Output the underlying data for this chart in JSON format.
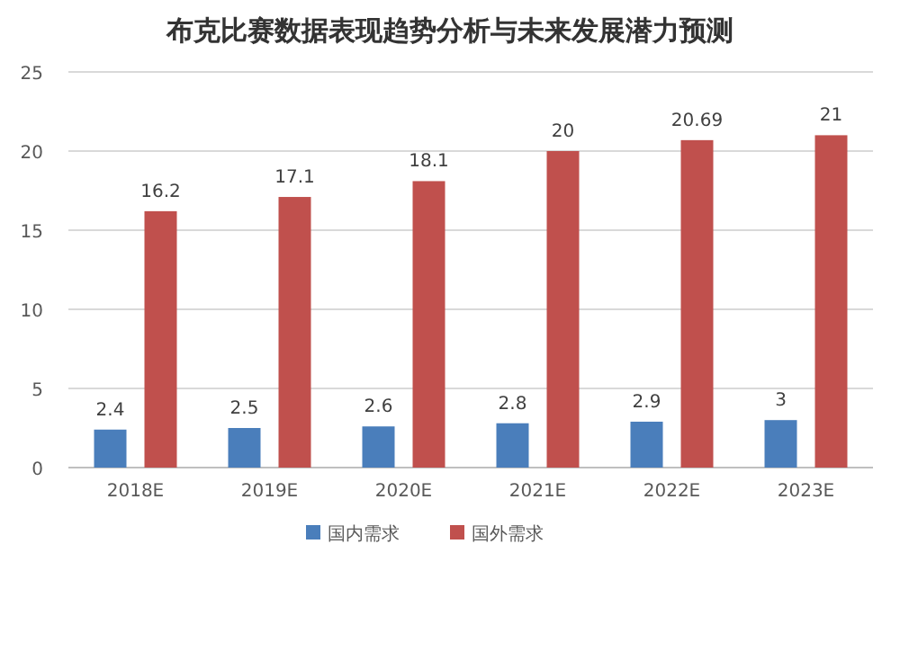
{
  "chart_data": {
    "type": "bar",
    "title": "布克比赛数据表现趋势分析与未来发展潜力预测",
    "categories": [
      "2018E",
      "2019E",
      "2020E",
      "2021E",
      "2022E",
      "2023E"
    ],
    "series": [
      {
        "name": "国内需求",
        "color": "#4a7ebb",
        "values": [
          2.4,
          2.5,
          2.6,
          2.8,
          2.9,
          3
        ]
      },
      {
        "name": "国外需求",
        "color": "#c0504d",
        "values": [
          16.2,
          17.1,
          18.1,
          20,
          20.69,
          21
        ]
      }
    ],
    "ylim": [
      0,
      25
    ],
    "yticks": [
      0,
      5,
      10,
      15,
      20,
      25
    ],
    "grid": "y",
    "legend": "bottom",
    "data_labels": true
  }
}
